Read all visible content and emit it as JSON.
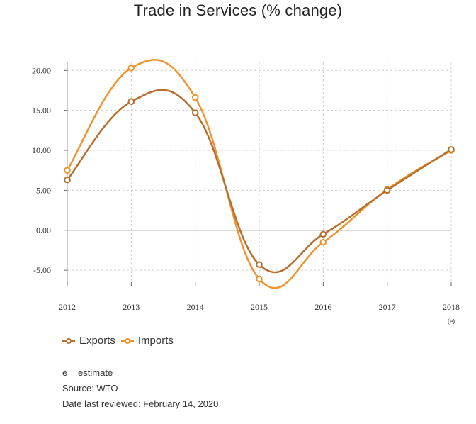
{
  "title": "Trade in Services (% change)",
  "chart_data": {
    "type": "line",
    "title": "Trade in Services (% change)",
    "categories": [
      "2012",
      "2013",
      "2014",
      "2015",
      "2016",
      "2017",
      "2018"
    ],
    "category_notes": {
      "2018": "(e)"
    },
    "series": [
      {
        "name": "Exports",
        "color": "#b86f2e",
        "values": [
          6.3,
          16.1,
          14.7,
          -4.3,
          -0.5,
          5.0,
          10.1
        ]
      },
      {
        "name": "Imports",
        "color": "#f0932b",
        "values": [
          7.5,
          20.3,
          16.6,
          -6.1,
          -1.5,
          5.1,
          10.0
        ]
      }
    ],
    "y_ticks": [
      "20.00",
      "15.00",
      "10.00",
      "5.00",
      "0.00",
      "-5.00"
    ],
    "ylim": [
      -6.5,
      21
    ],
    "grid": true,
    "legend_position": "bottom-left"
  },
  "legend": [
    {
      "label": "Exports",
      "color": "#b86f2e"
    },
    {
      "label": "Imports",
      "color": "#f0932b"
    }
  ],
  "notes": [
    "e = estimate",
    "Source: WTO",
    "Date last reviewed: February 14, 2020"
  ]
}
